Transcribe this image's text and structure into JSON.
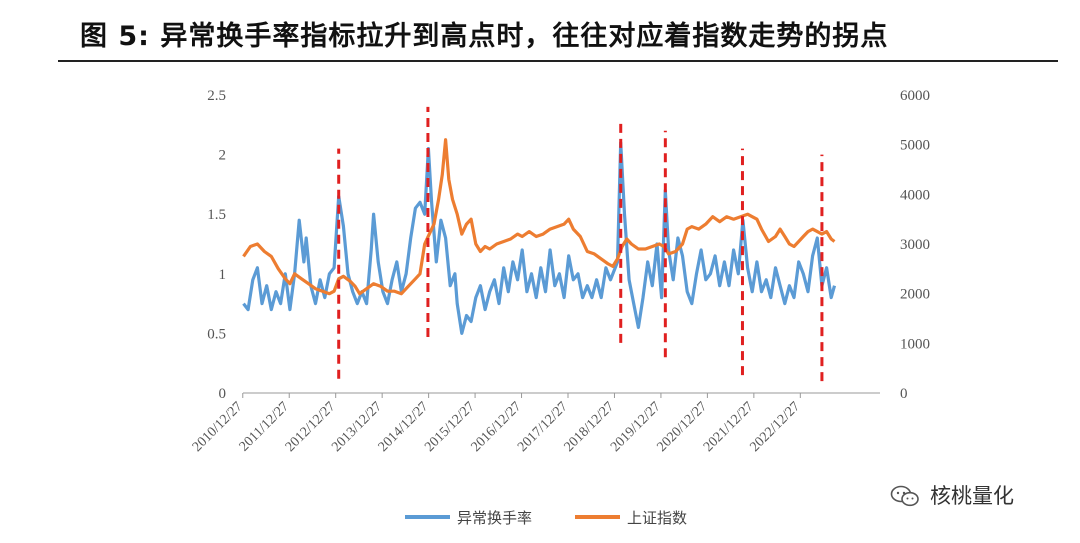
{
  "title": "图 5: 异常换手率指标拉升到高点时，往往对应着指数走势的拐点",
  "watermark": "核桃量化",
  "chart_data": {
    "type": "line",
    "x_ticks": [
      "2010/12/27",
      "2011/12/27",
      "2012/12/27",
      "2013/12/27",
      "2014/12/27",
      "2015/12/27",
      "2016/12/27",
      "2017/12/27",
      "2018/12/27",
      "2019/12/27",
      "2020/12/27",
      "2021/12/27",
      "2022/12/27"
    ],
    "x_range": [
      2010.99,
      2024.7
    ],
    "y_left": {
      "ticks": [
        "0",
        "0.5",
        "1",
        "1.5",
        "2",
        "2.5"
      ],
      "range": [
        0,
        2.5
      ]
    },
    "y_right": {
      "ticks": [
        "0",
        "1000",
        "2000",
        "3000",
        "4000",
        "5000",
        "6000"
      ],
      "range": [
        0,
        6000
      ]
    },
    "legend_position": "bottom",
    "series": [
      {
        "name": "异常换手率",
        "axis": "left",
        "color": "#5B9BD5",
        "points": [
          [
            2011.0,
            0.75
          ],
          [
            2011.1,
            0.7
          ],
          [
            2011.2,
            0.95
          ],
          [
            2011.3,
            1.05
          ],
          [
            2011.4,
            0.75
          ],
          [
            2011.5,
            0.9
          ],
          [
            2011.6,
            0.7
          ],
          [
            2011.7,
            0.85
          ],
          [
            2011.8,
            0.75
          ],
          [
            2011.9,
            1.0
          ],
          [
            2012.0,
            0.7
          ],
          [
            2012.1,
            1.0
          ],
          [
            2012.2,
            1.45
          ],
          [
            2012.3,
            1.1
          ],
          [
            2012.35,
            1.3
          ],
          [
            2012.45,
            0.9
          ],
          [
            2012.55,
            0.75
          ],
          [
            2012.65,
            0.95
          ],
          [
            2012.75,
            0.8
          ],
          [
            2012.85,
            1.0
          ],
          [
            2012.95,
            1.05
          ],
          [
            2013.05,
            1.65
          ],
          [
            2013.15,
            1.4
          ],
          [
            2013.25,
            1.0
          ],
          [
            2013.35,
            0.85
          ],
          [
            2013.45,
            0.75
          ],
          [
            2013.55,
            0.85
          ],
          [
            2013.65,
            0.75
          ],
          [
            2013.75,
            1.2
          ],
          [
            2013.8,
            1.5
          ],
          [
            2013.9,
            1.1
          ],
          [
            2014.0,
            0.85
          ],
          [
            2014.1,
            0.75
          ],
          [
            2014.2,
            0.95
          ],
          [
            2014.3,
            1.1
          ],
          [
            2014.4,
            0.85
          ],
          [
            2014.5,
            1.0
          ],
          [
            2014.6,
            1.3
          ],
          [
            2014.7,
            1.55
          ],
          [
            2014.8,
            1.6
          ],
          [
            2014.9,
            1.5
          ],
          [
            2014.98,
            2.05
          ],
          [
            2015.05,
            1.6
          ],
          [
            2015.15,
            1.1
          ],
          [
            2015.25,
            1.45
          ],
          [
            2015.35,
            1.3
          ],
          [
            2015.45,
            0.9
          ],
          [
            2015.55,
            1.0
          ],
          [
            2015.6,
            0.75
          ],
          [
            2015.7,
            0.5
          ],
          [
            2015.8,
            0.65
          ],
          [
            2015.9,
            0.6
          ],
          [
            2016.0,
            0.8
          ],
          [
            2016.1,
            0.9
          ],
          [
            2016.2,
            0.7
          ],
          [
            2016.3,
            0.85
          ],
          [
            2016.4,
            0.95
          ],
          [
            2016.5,
            0.75
          ],
          [
            2016.6,
            1.05
          ],
          [
            2016.7,
            0.85
          ],
          [
            2016.8,
            1.1
          ],
          [
            2016.9,
            0.95
          ],
          [
            2017.0,
            1.2
          ],
          [
            2017.1,
            0.85
          ],
          [
            2017.2,
            1.0
          ],
          [
            2017.3,
            0.8
          ],
          [
            2017.4,
            1.05
          ],
          [
            2017.5,
            0.85
          ],
          [
            2017.6,
            1.2
          ],
          [
            2017.7,
            0.9
          ],
          [
            2017.8,
            1.0
          ],
          [
            2017.9,
            0.8
          ],
          [
            2018.0,
            1.15
          ],
          [
            2018.1,
            0.95
          ],
          [
            2018.2,
            1.0
          ],
          [
            2018.3,
            0.8
          ],
          [
            2018.4,
            0.9
          ],
          [
            2018.5,
            0.8
          ],
          [
            2018.6,
            0.95
          ],
          [
            2018.7,
            0.8
          ],
          [
            2018.8,
            1.05
          ],
          [
            2018.9,
            0.95
          ],
          [
            2019.05,
            1.1
          ],
          [
            2019.12,
            2.1
          ],
          [
            2019.2,
            1.5
          ],
          [
            2019.3,
            0.95
          ],
          [
            2019.4,
            0.75
          ],
          [
            2019.5,
            0.55
          ],
          [
            2019.6,
            0.8
          ],
          [
            2019.7,
            1.1
          ],
          [
            2019.8,
            0.9
          ],
          [
            2019.9,
            1.25
          ],
          [
            2020.0,
            0.8
          ],
          [
            2020.08,
            1.7
          ],
          [
            2020.15,
            1.2
          ],
          [
            2020.25,
            0.95
          ],
          [
            2020.35,
            1.3
          ],
          [
            2020.45,
            1.15
          ],
          [
            2020.55,
            0.85
          ],
          [
            2020.65,
            0.75
          ],
          [
            2020.75,
            1.0
          ],
          [
            2020.85,
            1.2
          ],
          [
            2020.95,
            0.95
          ],
          [
            2021.05,
            1.0
          ],
          [
            2021.15,
            1.15
          ],
          [
            2021.25,
            0.9
          ],
          [
            2021.35,
            1.1
          ],
          [
            2021.45,
            0.9
          ],
          [
            2021.55,
            1.2
          ],
          [
            2021.65,
            1.0
          ],
          [
            2021.75,
            1.45
          ],
          [
            2021.85,
            1.05
          ],
          [
            2021.95,
            0.85
          ],
          [
            2022.05,
            1.1
          ],
          [
            2022.15,
            0.85
          ],
          [
            2022.25,
            0.95
          ],
          [
            2022.35,
            0.8
          ],
          [
            2022.45,
            1.05
          ],
          [
            2022.55,
            0.9
          ],
          [
            2022.65,
            0.75
          ],
          [
            2022.75,
            0.9
          ],
          [
            2022.85,
            0.8
          ],
          [
            2022.95,
            1.1
          ],
          [
            2023.05,
            1.0
          ],
          [
            2023.15,
            0.85
          ],
          [
            2023.25,
            1.15
          ],
          [
            2023.35,
            1.3
          ],
          [
            2023.45,
            0.9
          ],
          [
            2023.55,
            1.05
          ],
          [
            2023.65,
            0.8
          ],
          [
            2023.72,
            0.9
          ]
        ]
      },
      {
        "name": "上证指数",
        "axis": "right",
        "color": "#ED7D31",
        "points": [
          [
            2011.0,
            2750
          ],
          [
            2011.15,
            2950
          ],
          [
            2011.3,
            3000
          ],
          [
            2011.45,
            2850
          ],
          [
            2011.6,
            2750
          ],
          [
            2011.75,
            2500
          ],
          [
            2011.9,
            2300
          ],
          [
            2012.0,
            2200
          ],
          [
            2012.1,
            2400
          ],
          [
            2012.25,
            2300
          ],
          [
            2012.4,
            2200
          ],
          [
            2012.55,
            2100
          ],
          [
            2012.7,
            2050
          ],
          [
            2012.85,
            2000
          ],
          [
            2012.95,
            2050
          ],
          [
            2013.05,
            2300
          ],
          [
            2013.15,
            2350
          ],
          [
            2013.3,
            2250
          ],
          [
            2013.4,
            2150
          ],
          [
            2013.5,
            2000
          ],
          [
            2013.65,
            2100
          ],
          [
            2013.8,
            2200
          ],
          [
            2013.95,
            2150
          ],
          [
            2014.1,
            2050
          ],
          [
            2014.25,
            2050
          ],
          [
            2014.4,
            2000
          ],
          [
            2014.55,
            2150
          ],
          [
            2014.7,
            2300
          ],
          [
            2014.8,
            2400
          ],
          [
            2014.9,
            3000
          ],
          [
            2015.0,
            3200
          ],
          [
            2015.1,
            3400
          ],
          [
            2015.2,
            3900
          ],
          [
            2015.28,
            4400
          ],
          [
            2015.35,
            5100
          ],
          [
            2015.42,
            4300
          ],
          [
            2015.5,
            3900
          ],
          [
            2015.6,
            3600
          ],
          [
            2015.7,
            3200
          ],
          [
            2015.8,
            3400
          ],
          [
            2015.9,
            3500
          ],
          [
            2016.0,
            3000
          ],
          [
            2016.1,
            2850
          ],
          [
            2016.2,
            2950
          ],
          [
            2016.3,
            2900
          ],
          [
            2016.45,
            3000
          ],
          [
            2016.6,
            3050
          ],
          [
            2016.75,
            3100
          ],
          [
            2016.9,
            3200
          ],
          [
            2017.0,
            3150
          ],
          [
            2017.15,
            3250
          ],
          [
            2017.3,
            3150
          ],
          [
            2017.45,
            3200
          ],
          [
            2017.6,
            3300
          ],
          [
            2017.75,
            3350
          ],
          [
            2017.9,
            3400
          ],
          [
            2018.0,
            3500
          ],
          [
            2018.1,
            3300
          ],
          [
            2018.25,
            3150
          ],
          [
            2018.4,
            2850
          ],
          [
            2018.55,
            2800
          ],
          [
            2018.7,
            2700
          ],
          [
            2018.85,
            2600
          ],
          [
            2018.95,
            2550
          ],
          [
            2019.05,
            2700
          ],
          [
            2019.15,
            2950
          ],
          [
            2019.25,
            3100
          ],
          [
            2019.35,
            3000
          ],
          [
            2019.5,
            2900
          ],
          [
            2019.65,
            2900
          ],
          [
            2019.8,
            2950
          ],
          [
            2019.95,
            3000
          ],
          [
            2020.05,
            2950
          ],
          [
            2020.15,
            2800
          ],
          [
            2020.3,
            2850
          ],
          [
            2020.45,
            3000
          ],
          [
            2020.55,
            3300
          ],
          [
            2020.65,
            3350
          ],
          [
            2020.8,
            3300
          ],
          [
            2020.95,
            3400
          ],
          [
            2021.1,
            3550
          ],
          [
            2021.25,
            3450
          ],
          [
            2021.4,
            3550
          ],
          [
            2021.55,
            3500
          ],
          [
            2021.7,
            3550
          ],
          [
            2021.85,
            3600
          ],
          [
            2021.95,
            3550
          ],
          [
            2022.05,
            3500
          ],
          [
            2022.15,
            3300
          ],
          [
            2022.3,
            3050
          ],
          [
            2022.45,
            3150
          ],
          [
            2022.55,
            3300
          ],
          [
            2022.65,
            3150
          ],
          [
            2022.75,
            3000
          ],
          [
            2022.85,
            2950
          ],
          [
            2022.95,
            3050
          ],
          [
            2023.05,
            3150
          ],
          [
            2023.15,
            3250
          ],
          [
            2023.25,
            3300
          ],
          [
            2023.35,
            3250
          ],
          [
            2023.45,
            3200
          ],
          [
            2023.55,
            3250
          ],
          [
            2023.65,
            3100
          ],
          [
            2023.72,
            3050
          ]
        ]
      }
    ],
    "markers": {
      "style": "dashed-vertical",
      "color": "#E02020",
      "lines": [
        {
          "x": 2013.05,
          "y_from": 0.12,
          "y_to": 2.05
        },
        {
          "x": 2014.97,
          "y_from": 0.47,
          "y_to": 2.4
        },
        {
          "x": 2019.12,
          "y_from": 0.42,
          "y_to": 2.3
        },
        {
          "x": 2020.08,
          "y_from": 0.3,
          "y_to": 2.2
        },
        {
          "x": 2021.74,
          "y_from": 0.15,
          "y_to": 2.05
        },
        {
          "x": 2023.45,
          "y_from": 0.1,
          "y_to": 2.0
        }
      ]
    }
  }
}
